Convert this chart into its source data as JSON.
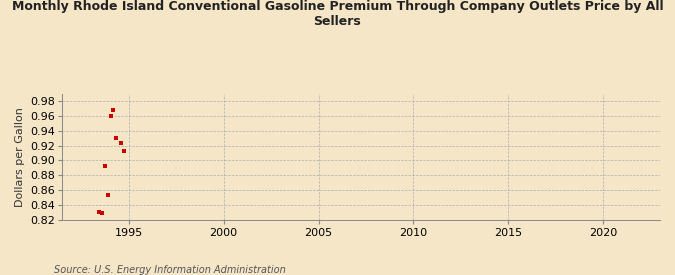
{
  "title": "Monthly Rhode Island Conventional Gasoline Premium Through Company Outlets Price by All\nSellers",
  "ylabel": "Dollars per Gallon",
  "source": "Source: U.S. Energy Information Administration",
  "background_color": "#f5e6c8",
  "marker_color": "#cc0000",
  "xlim": [
    1991.5,
    2023
  ],
  "ylim": [
    0.82,
    0.99
  ],
  "yticks": [
    0.82,
    0.84,
    0.86,
    0.88,
    0.9,
    0.92,
    0.94,
    0.96,
    0.98
  ],
  "xticks": [
    1995,
    2000,
    2005,
    2010,
    2015,
    2020
  ],
  "data_x": [
    1993.42,
    1993.58,
    1993.92,
    1993.75,
    1994.17,
    1994.08,
    1994.33,
    1994.58,
    1994.75
  ],
  "data_y": [
    0.831,
    0.829,
    0.853,
    0.893,
    0.968,
    0.96,
    0.93,
    0.923,
    0.913
  ]
}
